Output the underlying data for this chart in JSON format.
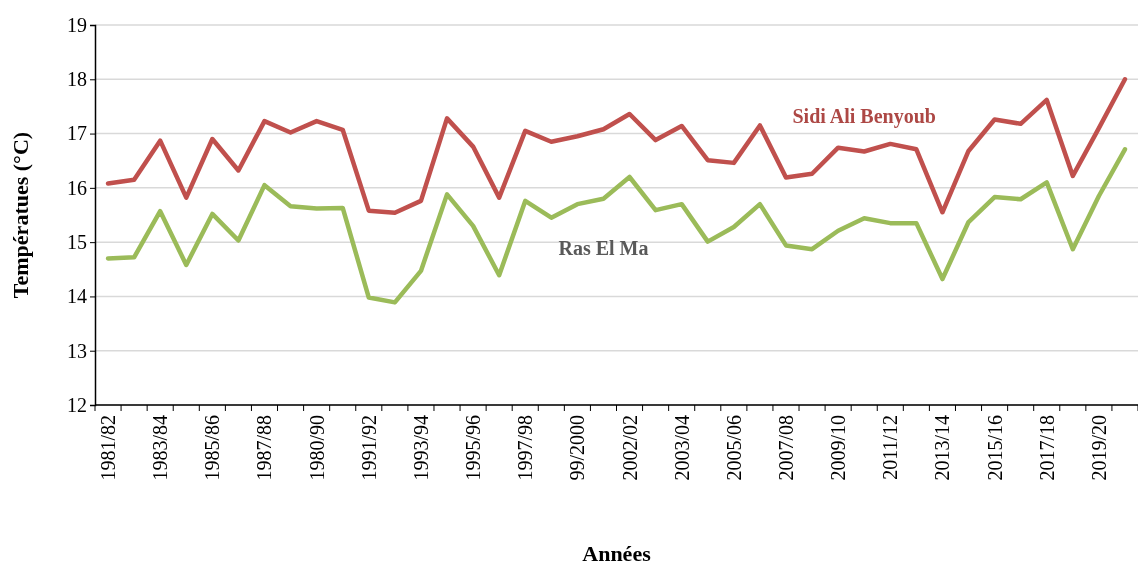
{
  "chart_data": {
    "type": "line",
    "xlabel": "Années",
    "ylabel": "Températues (°C)",
    "categories": [
      "1981/82",
      null,
      "1983/84",
      null,
      "1985/86",
      null,
      "1987/88",
      null,
      "1980/90",
      null,
      "1991/92",
      null,
      "1993/94",
      null,
      "1995/96",
      null,
      "1997/98",
      null,
      "99/2000",
      null,
      "2002/02",
      null,
      "2003/04",
      null,
      "2005/06",
      null,
      "2007/08",
      null,
      "2009/10",
      null,
      "2011/12",
      null,
      "2013/14",
      null,
      "2015/16",
      null,
      "2017/18",
      null,
      "2019/20",
      null
    ],
    "series": [
      {
        "name": "Sidi Ali Benyoub",
        "color": "#c0504d",
        "values": [
          16.08,
          16.15,
          16.87,
          15.82,
          16.9,
          16.32,
          17.23,
          17.02,
          17.23,
          17.07,
          15.58,
          15.54,
          15.76,
          17.28,
          16.76,
          15.82,
          17.05,
          16.85,
          16.95,
          17.08,
          17.36,
          16.88,
          17.14,
          16.51,
          16.46,
          17.15,
          16.19,
          16.26,
          16.74,
          16.67,
          16.81,
          16.71,
          15.55,
          16.68,
          17.26,
          17.18,
          17.62,
          16.22,
          17.1,
          18.0
        ]
      },
      {
        "name": "Ras El Ma",
        "color": "#9bbb59",
        "values": [
          14.7,
          14.72,
          15.57,
          14.58,
          15.52,
          15.03,
          16.05,
          15.66,
          15.62,
          15.63,
          13.98,
          13.89,
          14.47,
          15.88,
          15.3,
          14.39,
          15.76,
          15.45,
          15.7,
          15.8,
          16.2,
          15.59,
          15.7,
          15.01,
          15.28,
          15.7,
          14.94,
          14.87,
          15.21,
          15.44,
          15.35,
          15.35,
          14.32,
          15.37,
          15.83,
          15.79,
          16.1,
          14.87,
          15.85,
          16.71
        ]
      }
    ],
    "ylim": [
      12,
      19
    ],
    "yticks": [
      12,
      13,
      14,
      15,
      16,
      17,
      18,
      19
    ],
    "grid": "y",
    "legend": false,
    "marker": "none",
    "line_style": "solid"
  }
}
